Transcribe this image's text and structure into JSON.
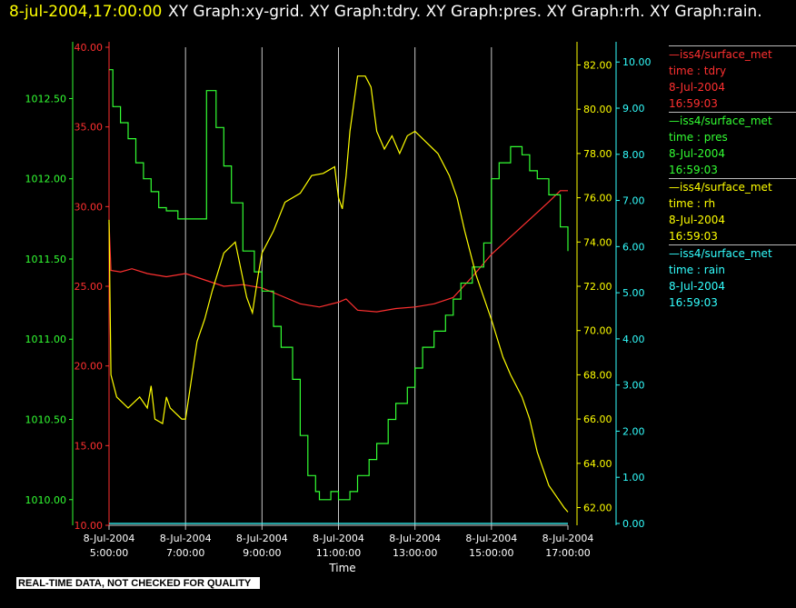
{
  "header": {
    "datetime": "8-jul-2004,17:00:00",
    "graphs_text": "XY Graph:xy-grid.  XY Graph:tdry.  XY Graph:pres.  XY Graph:rh.  XY Graph:rain."
  },
  "legend": [
    {
      "name": "iss4/surface_met",
      "var": "time : tdry",
      "date": "8-Jul-2004",
      "time": "16:59:03",
      "color": "#ff3030"
    },
    {
      "name": "iss4/surface_met",
      "var": "time : pres",
      "date": "8-Jul-2004",
      "time": "16:59:03",
      "color": "#33ff33"
    },
    {
      "name": "iss4/surface_met",
      "var": "time : rh",
      "date": "8-Jul-2004",
      "time": "16:59:03",
      "color": "#ffff00"
    },
    {
      "name": "iss4/surface_met",
      "var": "time : rain",
      "date": "8-Jul-2004",
      "time": "16:59:03",
      "color": "#33ffff"
    }
  ],
  "banner": "REAL-TIME DATA, NOT CHECKED FOR QUALITY",
  "chart_data": {
    "type": "line",
    "xlabel": "Time",
    "x_ticks": [
      {
        "date": "8-Jul-2004",
        "time": "5:00:00",
        "hour": 5
      },
      {
        "date": "8-Jul-2004",
        "time": "7:00:00",
        "hour": 7
      },
      {
        "date": "8-Jul-2004",
        "time": "9:00:00",
        "hour": 9
      },
      {
        "date": "8-Jul-2004",
        "time": "11:00:00",
        "hour": 11
      },
      {
        "date": "8-Jul-2004",
        "time": "13:00:00",
        "hour": 13
      },
      {
        "date": "8-Jul-2004",
        "time": "15:00:00",
        "hour": 15
      },
      {
        "date": "8-Jul-2004",
        "time": "17:00:00",
        "hour": 17
      }
    ],
    "xlim": [
      5,
      17
    ],
    "grid": "vertical",
    "axes": [
      {
        "id": "tdry",
        "color": "#ff3030",
        "ylim": [
          10,
          40
        ],
        "ticks": [
          "10.00",
          "15.00",
          "20.00",
          "25.00",
          "30.00",
          "35.00",
          "40.00"
        ]
      },
      {
        "id": "pres",
        "color": "#33ff33",
        "ylim": [
          1009.84,
          1012.82
        ],
        "ticks": [
          "1010.00",
          "1010.50",
          "1011.00",
          "1011.50",
          "1012.00",
          "1012.50"
        ]
      },
      {
        "id": "rh",
        "color": "#ffff00",
        "ylim": [
          61.2,
          82.8
        ],
        "ticks": [
          "62.00",
          "64.00",
          "66.00",
          "68.00",
          "70.00",
          "72.00",
          "74.00",
          "76.00",
          "78.00",
          "80.00",
          "82.00"
        ]
      },
      {
        "id": "rain",
        "color": "#33ffff",
        "ylim": [
          -0.04,
          10.32
        ],
        "ticks": [
          "0.00",
          "1.00",
          "2.00",
          "3.00",
          "4.00",
          "5.00",
          "6.00",
          "7.00",
          "8.00",
          "9.00",
          "10.00"
        ]
      }
    ],
    "series": [
      {
        "axis": "tdry",
        "color": "#ff3030",
        "step": false,
        "x": [
          5.0,
          5.05,
          5.3,
          5.6,
          6.0,
          6.5,
          7.0,
          7.5,
          8.0,
          8.5,
          9.0,
          9.5,
          10.0,
          10.5,
          11.0,
          11.2,
          11.5,
          12.0,
          12.5,
          13.0,
          13.5,
          14.0,
          14.5,
          15.0,
          15.5,
          16.0,
          16.5,
          16.8,
          17.0
        ],
        "y": [
          29.0,
          26.0,
          25.9,
          26.1,
          25.8,
          25.6,
          25.8,
          25.4,
          25.0,
          25.1,
          24.9,
          24.4,
          23.9,
          23.7,
          24.0,
          24.2,
          23.5,
          23.4,
          23.6,
          23.7,
          23.9,
          24.3,
          25.6,
          27.0,
          28.1,
          29.2,
          30.3,
          31.0,
          31.0
        ]
      },
      {
        "axis": "pres",
        "color": "#33ff33",
        "step": true,
        "x": [
          5.0,
          5.1,
          5.3,
          5.5,
          5.7,
          5.9,
          6.1,
          6.3,
          6.5,
          6.8,
          7.0,
          7.3,
          7.5,
          7.55,
          7.8,
          8.0,
          8.2,
          8.5,
          8.8,
          9.0,
          9.3,
          9.5,
          9.8,
          10.0,
          10.2,
          10.4,
          10.5,
          10.8,
          11.0,
          11.3,
          11.5,
          11.8,
          12.0,
          12.3,
          12.5,
          12.8,
          13.0,
          13.2,
          13.5,
          13.8,
          14.0,
          14.2,
          14.5,
          14.8,
          15.0,
          15.2,
          15.5,
          15.8,
          16.0,
          16.2,
          16.5,
          16.8,
          17.0
        ],
        "y": [
          1012.68,
          1012.45,
          1012.35,
          1012.25,
          1012.1,
          1012.0,
          1011.92,
          1011.82,
          1011.8,
          1011.75,
          1011.75,
          1011.75,
          1011.75,
          1012.55,
          1012.32,
          1012.08,
          1011.85,
          1011.55,
          1011.42,
          1011.3,
          1011.08,
          1010.95,
          1010.75,
          1010.4,
          1010.15,
          1010.05,
          1010.0,
          1010.05,
          1010.0,
          1010.05,
          1010.15,
          1010.25,
          1010.35,
          1010.5,
          1010.6,
          1010.7,
          1010.82,
          1010.95,
          1011.05,
          1011.15,
          1011.25,
          1011.35,
          1011.45,
          1011.6,
          1012.0,
          1012.1,
          1012.2,
          1012.15,
          1012.05,
          1012.0,
          1011.9,
          1011.7,
          1011.55
        ]
      },
      {
        "axis": "rh",
        "color": "#ffff00",
        "step": false,
        "x": [
          5.0,
          5.05,
          5.2,
          5.5,
          5.8,
          6.0,
          6.1,
          6.2,
          6.4,
          6.5,
          6.6,
          6.9,
          7.0,
          7.3,
          7.5,
          7.7,
          8.0,
          8.3,
          8.6,
          8.75,
          8.9,
          9.0,
          9.3,
          9.6,
          10.0,
          10.3,
          10.6,
          10.9,
          11.0,
          11.1,
          11.2,
          11.3,
          11.5,
          11.7,
          11.85,
          12.0,
          12.2,
          12.4,
          12.6,
          12.8,
          13.0,
          13.3,
          13.6,
          13.9,
          14.1,
          14.3,
          14.6,
          14.9,
          15.0,
          15.3,
          15.5,
          15.8,
          16.0,
          16.2,
          16.5,
          16.7,
          16.9,
          17.0
        ],
        "y": [
          75.0,
          68.0,
          67.0,
          66.5,
          67.0,
          66.5,
          67.5,
          66.0,
          65.8,
          67.0,
          66.5,
          66.0,
          66.0,
          69.5,
          70.5,
          71.8,
          73.5,
          74.0,
          71.5,
          70.8,
          72.5,
          73.5,
          74.5,
          75.8,
          76.2,
          77.0,
          77.1,
          77.4,
          76.0,
          75.5,
          77.0,
          79.0,
          81.5,
          81.5,
          81.0,
          79.0,
          78.2,
          78.8,
          78.0,
          78.8,
          79.0,
          78.5,
          78.0,
          77.0,
          76.0,
          74.5,
          72.5,
          71.0,
          70.5,
          68.8,
          68.0,
          67.0,
          66.0,
          64.5,
          63.0,
          62.5,
          62.0,
          61.8
        ]
      },
      {
        "axis": "rain",
        "color": "#33ffff",
        "step": false,
        "x": [
          5.0,
          17.0
        ],
        "y": [
          0.0,
          0.0
        ]
      }
    ]
  }
}
